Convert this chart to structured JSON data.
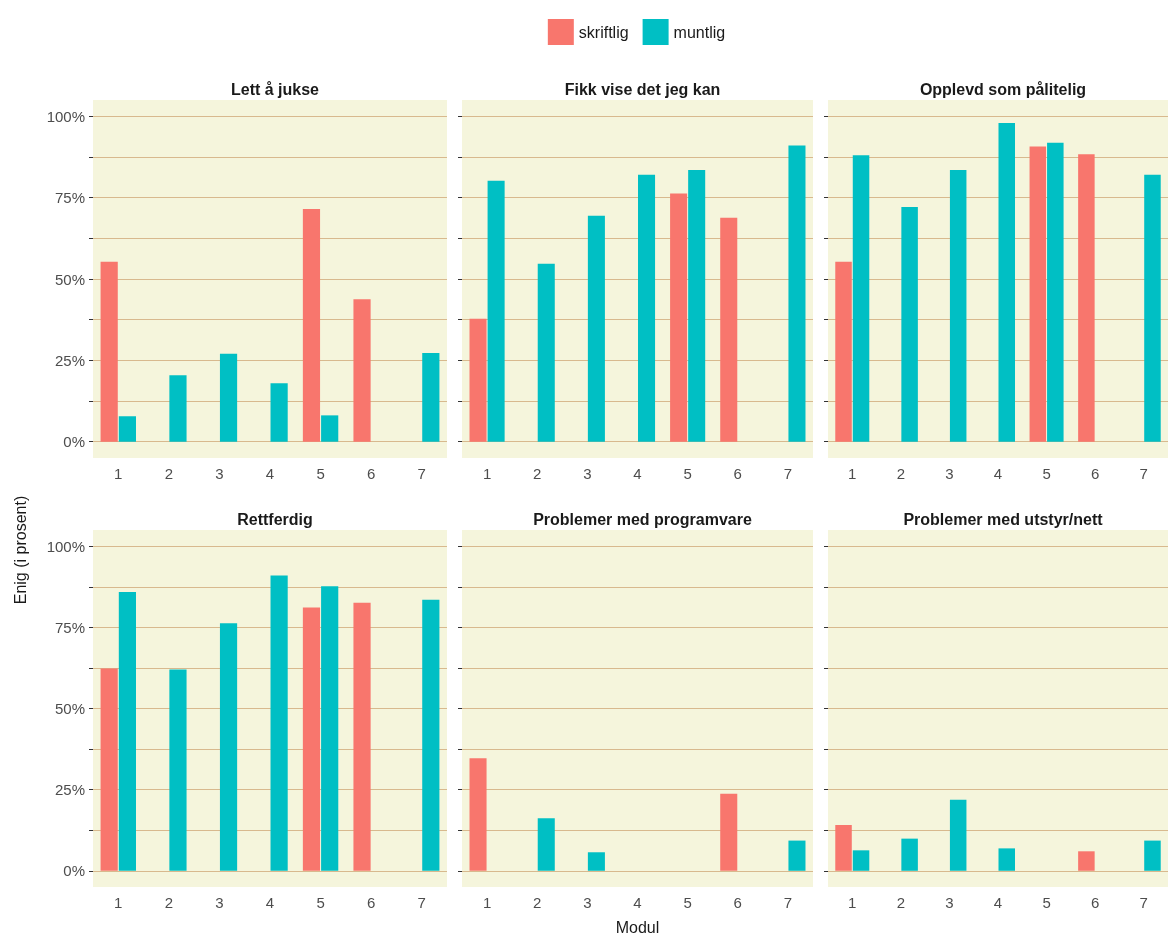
{
  "chart_data": [
    {
      "type": "bar",
      "title": "Lett å jukse",
      "categories": [
        "1",
        "2",
        "3",
        "4",
        "5",
        "6",
        "7"
      ],
      "series": [
        {
          "color": "#f8766d",
          "values": [
            55.3,
            null,
            null,
            null,
            71.5,
            43.8,
            null
          ]
        },
        {
          "color": "#00bfc4",
          "values": [
            7.8,
            20.4,
            27.0,
            18.0,
            8.1,
            null,
            27.3
          ]
        }
      ],
      "ylim": [
        -5,
        105
      ],
      "yticks": [
        {
          "value": 0,
          "label": "0%"
        },
        {
          "value": 12.5,
          "label": null
        },
        {
          "value": 25,
          "label": "25%"
        },
        {
          "value": 37.5,
          "label": null
        },
        {
          "value": 50,
          "label": "50%"
        },
        {
          "value": 62.5,
          "label": null
        },
        {
          "value": 75,
          "label": "75%"
        },
        {
          "value": 87.5,
          "label": null
        },
        {
          "value": 100,
          "label": "100%"
        }
      ],
      "grid": "y"
    },
    {
      "type": "bar",
      "title": "Fikk vise det jeg kan",
      "categories": [
        "1",
        "2",
        "3",
        "4",
        "5",
        "6",
        "7"
      ],
      "series": [
        {
          "name": "skriftlig",
          "color": "#f8766d",
          "values": [
            37.8,
            null,
            null,
            null,
            76.3,
            68.8,
            null
          ]
        },
        {
          "name": "muntlig",
          "color": "#00bfc4",
          "values": [
            80.2,
            54.7,
            69.4,
            82.0,
            83.5,
            null,
            91.0
          ]
        }
      ],
      "ylim": [
        -5,
        105
      ],
      "yticks": [
        0,
        12.5,
        25,
        37.5,
        50,
        62.5,
        75,
        87.5,
        100
      ],
      "grid": "y",
      "legend": "top",
      "tick_labels": "x"
    },
    {
      "type": "bar",
      "title": "Opplevd som pålitelig",
      "categories": [
        "1",
        "2",
        "3",
        "4",
        "5",
        "6",
        "7"
      ],
      "series": [
        {
          "color": "#f8766d",
          "values": [
            55.3,
            null,
            null,
            null,
            90.7,
            88.3,
            null
          ]
        },
        {
          "color": "#00bfc4",
          "values": [
            88.0,
            72.1,
            83.5,
            97.9,
            91.9,
            null,
            82.0
          ]
        }
      ],
      "ylim": [
        -5,
        105
      ],
      "yticks": [
        0,
        12.5,
        25,
        37.5,
        50,
        62.5,
        75,
        87.5,
        100
      ],
      "grid": "y",
      "tick_labels": "x"
    },
    {
      "type": "bar",
      "title": "Rettferdig",
      "ylabel": "Enig (i prosent)",
      "categories": [
        "1",
        "2",
        "3",
        "4",
        "5",
        "6",
        "7"
      ],
      "series": [
        {
          "color": "#f8766d",
          "values": [
            62.3,
            null,
            null,
            null,
            81.1,
            82.6,
            null
          ]
        },
        {
          "color": "#00bfc4",
          "values": [
            85.9,
            62.0,
            76.3,
            91.0,
            87.7,
            null,
            83.5
          ]
        }
      ],
      "ylim": [
        -5,
        105
      ],
      "yticks": [
        {
          "value": 0,
          "label": "0%"
        },
        {
          "value": 12.5,
          "label": null
        },
        {
          "value": 25,
          "label": "25%"
        },
        {
          "value": 37.5,
          "label": null
        },
        {
          "value": 50,
          "label": "50%"
        },
        {
          "value": 62.5,
          "label": null
        },
        {
          "value": 75,
          "label": "75%"
        },
        {
          "value": 87.5,
          "label": null
        },
        {
          "value": 100,
          "label": "100%"
        }
      ],
      "grid": "y"
    },
    {
      "type": "bar",
      "title": "Problemer med programvare",
      "xlabel": "Modul",
      "categories": [
        "1",
        "2",
        "3",
        "4",
        "5",
        "6",
        "7"
      ],
      "series": [
        {
          "color": "#f8766d",
          "values": [
            34.7,
            null,
            null,
            null,
            0,
            23.7,
            null
          ]
        },
        {
          "color": "#00bfc4",
          "values": [
            0,
            16.2,
            5.7,
            0,
            0,
            null,
            9.3
          ]
        }
      ],
      "ylim": [
        -5,
        105
      ],
      "yticks": [
        0,
        12.5,
        25,
        37.5,
        50,
        62.5,
        75,
        87.5,
        100
      ],
      "grid": "y",
      "tick_labels": "x"
    },
    {
      "type": "bar",
      "title": "Problemer med utstyr/nett",
      "categories": [
        "1",
        "2",
        "3",
        "4",
        "5",
        "6",
        "7"
      ],
      "series": [
        {
          "color": "#f8766d",
          "values": [
            14.1,
            null,
            null,
            null,
            0,
            6.0,
            null
          ]
        },
        {
          "color": "#00bfc4",
          "values": [
            6.3,
            9.9,
            21.9,
            6.9,
            0,
            null,
            9.3
          ]
        }
      ],
      "ylim": [
        -5,
        105
      ],
      "yticks": [
        0,
        12.5,
        25,
        37.5,
        50,
        62.5,
        75,
        87.5,
        100
      ],
      "grid": "y",
      "tick_labels": "x"
    }
  ]
}
